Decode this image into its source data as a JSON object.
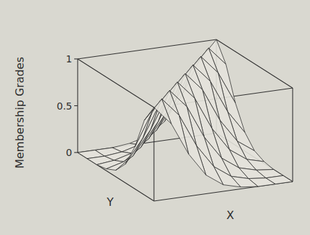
{
  "chart_data": {
    "type": "surface",
    "z_label": "Membership Grades",
    "x_label": "X",
    "y_label": "Y",
    "x": [
      0,
      1,
      2,
      3,
      4,
      5,
      6,
      7,
      8
    ],
    "y": [
      0,
      1,
      2,
      3,
      4,
      5,
      6,
      7,
      8
    ],
    "xlim": [
      0,
      8
    ],
    "ylim": [
      0,
      8
    ],
    "zlim": [
      0,
      1
    ],
    "zticks": [
      0,
      0.5,
      1
    ],
    "z": [
      [
        1,
        0.8,
        0.45,
        0.2,
        0.07,
        0.02,
        0,
        0,
        0
      ],
      [
        0.8,
        1,
        0.8,
        0.45,
        0.2,
        0.07,
        0.02,
        0,
        0
      ],
      [
        0.45,
        0.8,
        1,
        0.8,
        0.45,
        0.2,
        0.07,
        0.02,
        0
      ],
      [
        0.2,
        0.45,
        0.8,
        1,
        0.8,
        0.45,
        0.2,
        0.07,
        0.02
      ],
      [
        0.07,
        0.2,
        0.45,
        0.8,
        1,
        0.8,
        0.45,
        0.2,
        0.07
      ],
      [
        0.02,
        0.07,
        0.2,
        0.45,
        0.8,
        1,
        0.8,
        0.45,
        0.2
      ],
      [
        0,
        0.02,
        0.07,
        0.2,
        0.45,
        0.8,
        1,
        0.8,
        0.45
      ],
      [
        0,
        0,
        0.02,
        0.07,
        0.2,
        0.45,
        0.8,
        1,
        0.8
      ],
      [
        0,
        0,
        0,
        0.02,
        0.07,
        0.2,
        0.45,
        0.8,
        1
      ]
    ]
  }
}
